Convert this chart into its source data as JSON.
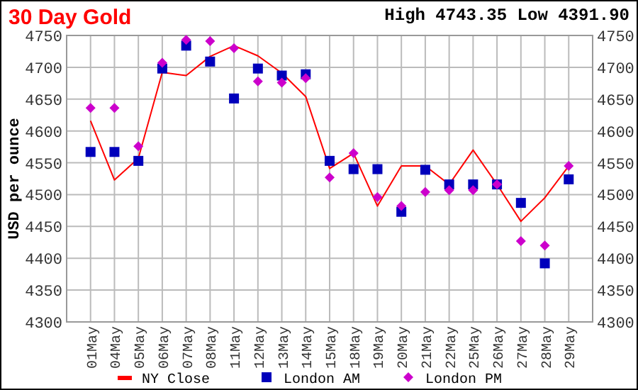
{
  "chart_data": {
    "type": "line",
    "title": "30 Day Gold",
    "annotations": [
      "High 4743.35 Low 4391.90"
    ],
    "ylabel": "USD per ounce",
    "categories": [
      "01May",
      "04May",
      "05May",
      "06May",
      "07May",
      "08May",
      "11May",
      "12May",
      "13May",
      "14May",
      "15May",
      "18May",
      "19May",
      "20May",
      "21May",
      "22May",
      "25May",
      "26May",
      "27May",
      "28May",
      "29May"
    ],
    "series": [
      {
        "name": "NY Close",
        "marker": "none",
        "color": "#ff0000",
        "values": [
          4616,
          4523,
          4557,
          4692,
          4687,
          4717,
          4734,
          4718,
          4691,
          4654,
          4541,
          4565,
          4482,
          4545,
          4545,
          4516,
          4570,
          4516,
          4458,
          4495,
          4545
        ]
      },
      {
        "name": "London AM",
        "type": "scatter",
        "marker": "square",
        "color": "#0000bb",
        "values": [
          4567,
          4567,
          4553,
          4698,
          4734,
          4709,
          4651,
          4698,
          4687,
          4689,
          4553,
          4540,
          4540,
          4473,
          4539,
          4516,
          4516,
          4516,
          4487,
          4392,
          4524
        ]
      },
      {
        "name": "London PM",
        "type": "scatter",
        "marker": "diamond",
        "color": "#cc00cc",
        "values": [
          4636,
          4636,
          4576,
          4707,
          4743,
          4741,
          4730,
          4678,
          4676,
          4683,
          4527,
          4565,
          4496,
          4482,
          4504,
          4507,
          4507,
          4516,
          4427,
          4420,
          4545
        ]
      }
    ],
    "ylim": [
      4300,
      4750
    ],
    "yticks": [
      4300,
      4350,
      4400,
      4450,
      4500,
      4550,
      4600,
      4650,
      4700,
      4750
    ],
    "y2lim": [
      4300,
      4750
    ],
    "y2ticks": [
      4300,
      4350,
      4400,
      4450,
      4500,
      4550,
      4600,
      4650,
      4700,
      4750
    ],
    "grid": true,
    "legend": "bottom"
  }
}
